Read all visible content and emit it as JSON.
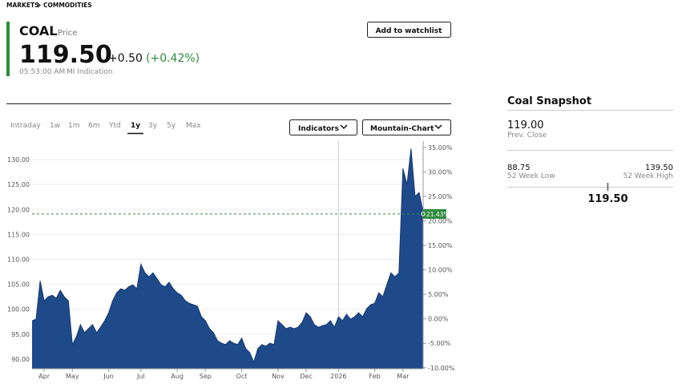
{
  "header": {
    "breadcrumb": [
      "MARKETS",
      "COMMODITIES"
    ],
    "symbol": "COAL",
    "symbol_note": "Price",
    "price": "119.50",
    "change": "+0.50",
    "change_pct": "(+0.42%)",
    "time": "05:53:00 AM",
    "source": "MI Indication",
    "watchlist_button": "Add to watchlist"
  },
  "tabs": {
    "items": [
      "Intraday",
      "1w",
      "1m",
      "6m",
      "Ytd",
      "1y",
      "3y",
      "5y",
      "Max"
    ],
    "selected": 5
  },
  "dropdowns": [
    "Indicators",
    "Mountain-Chart"
  ],
  "snapshot": {
    "title": "Coal Snapshot",
    "prev_close": 119.0,
    "prev_close_text": "119.00",
    "prev_close_label": "Prev. Close",
    "low": 88.75,
    "low_text": "88.75",
    "low_label": "52 Week Low",
    "high": 139.5,
    "high_text": "139.50",
    "high_label": "52 Week High",
    "current": 119.5,
    "current_text": "119.50"
  },
  "chart_data": {
    "type": "area",
    "color": "#1f4a8a",
    "line_color": "#163a70",
    "categories": [
      null,
      null,
      null,
      "Apr",
      null,
      null,
      null,
      null,
      null,
      null,
      "May",
      null,
      null,
      null,
      null,
      null,
      null,
      null,
      null,
      "Jun",
      null,
      null,
      null,
      null,
      null,
      null,
      null,
      "Jul",
      null,
      null,
      null,
      null,
      null,
      null,
      null,
      null,
      "Aug",
      null,
      null,
      null,
      null,
      null,
      null,
      "Sep",
      null,
      null,
      null,
      null,
      null,
      null,
      null,
      null,
      "Oct",
      null,
      null,
      null,
      null,
      null,
      null,
      null,
      null,
      "Nov",
      null,
      null,
      null,
      null,
      null,
      null,
      "Dec",
      null,
      null,
      null,
      null,
      null,
      null,
      null,
      "2026",
      null,
      null,
      null,
      null,
      null,
      null,
      null,
      null,
      "Feb",
      null,
      null,
      null,
      null,
      null,
      null,
      "Mar",
      null,
      null,
      null,
      null,
      null
    ],
    "values": [
      97.7,
      98.0,
      105.7,
      101.7,
      102.5,
      102.8,
      102.2,
      103.8,
      102.5,
      101.7,
      92.9,
      94.5,
      96.9,
      95.3,
      96.1,
      96.9,
      95.3,
      96.4,
      97.7,
      99.3,
      101.7,
      103.3,
      104.1,
      103.8,
      104.5,
      104.9,
      104.1,
      109.0,
      107.3,
      106.5,
      107.3,
      106.1,
      104.9,
      104.5,
      105.4,
      104.1,
      103.3,
      102.8,
      101.7,
      101.2,
      100.9,
      100.6,
      98.5,
      97.7,
      96.1,
      95.3,
      93.7,
      93.2,
      92.9,
      93.7,
      93.2,
      92.9,
      94.2,
      92.1,
      91.3,
      89.4,
      92.1,
      92.9,
      92.6,
      93.2,
      92.9,
      97.7,
      96.9,
      96.1,
      96.4,
      96.1,
      96.4,
      97.4,
      99.3,
      98.5,
      96.9,
      96.4,
      96.7,
      96.9,
      97.7,
      96.4,
      98.5,
      97.7,
      99.0,
      98.0,
      98.5,
      99.3,
      98.5,
      100.1,
      100.9,
      101.2,
      103.3,
      102.5,
      104.9,
      107.3,
      106.5,
      107.3,
      128.2,
      125.0,
      132.2,
      122.6,
      123.4,
      119.5
    ],
    "ylim": [
      88.07,
      133.7
    ],
    "yticks": [
      {
        "value": 90,
        "label": "90.00"
      },
      {
        "value": 95,
        "label": "95.00"
      },
      {
        "value": 100,
        "label": "100.00"
      },
      {
        "value": 105,
        "label": "105.00"
      },
      {
        "value": 110,
        "label": "110.00"
      },
      {
        "value": 115,
        "label": "115.00"
      },
      {
        "value": 120,
        "label": "120.00"
      },
      {
        "value": 125,
        "label": "125.00"
      },
      {
        "value": 130,
        "label": "130.00"
      }
    ],
    "y2lim": [
      -10.2,
      36.3
    ],
    "y2ticks": [
      {
        "value": -10,
        "label": "-10.00%"
      },
      {
        "value": -5,
        "label": "-5.00%"
      },
      {
        "value": 0,
        "label": "0.00%"
      },
      {
        "value": 5,
        "label": "5.00%"
      },
      {
        "value": 10,
        "label": "10.00%"
      },
      {
        "value": 15,
        "label": "15.00%"
      },
      {
        "value": 20,
        "label": "20.00%"
      },
      {
        "value": 25,
        "label": "25.00%"
      },
      {
        "value": 30,
        "label": "30.00%"
      },
      {
        "value": 35,
        "label": "35.00%"
      }
    ],
    "marker": {
      "axis": "y2",
      "value": 21.43,
      "label": "21.43%",
      "color": "#2e8b3e"
    },
    "year_divider": 76
  }
}
